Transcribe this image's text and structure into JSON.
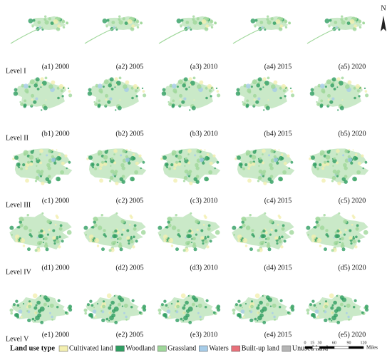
{
  "north": "N",
  "rows": [
    {
      "label": "Level I",
      "panels": [
        "(a1) 2000",
        "(a2) 2005",
        "(a3) 2010",
        "(a4) 2015",
        "(a5) 2020"
      ]
    },
    {
      "label": "Level II",
      "panels": [
        "(b1) 2000",
        "(b2) 2005",
        "(b3) 2010",
        "(b4) 2015",
        "(b5) 2020"
      ]
    },
    {
      "label": "Level III",
      "panels": [
        "(c1) 2000",
        "(c2) 2005",
        "(c3) 2010",
        "(c4) 2015",
        "(c5) 2020"
      ]
    },
    {
      "label": "Level IV",
      "panels": [
        "(d1) 2000",
        "(d2) 2005",
        "(d3) 2010",
        "(d4) 2015",
        "(d5) 2020"
      ]
    },
    {
      "label": "Level V",
      "panels": [
        "(e1) 2000",
        "(e2) 2005",
        "(e3) 2010",
        "(e4) 2015",
        "(e5) 2020"
      ]
    }
  ],
  "legend": {
    "title": "Land use type",
    "items": [
      {
        "label": "Cultivated land",
        "color": "#f3efb0"
      },
      {
        "label": "Woodland",
        "color": "#2f9e62"
      },
      {
        "label": "Grassland",
        "color": "#9fd79a"
      },
      {
        "label": "Waters",
        "color": "#a6cce8"
      },
      {
        "label": "Built-up land",
        "color": "#e8707a"
      },
      {
        "label": "Unused land",
        "color": "#b5b5b5"
      }
    ]
  },
  "scale_bar": {
    "ticks": [
      0,
      15,
      30,
      60,
      90,
      120
    ],
    "unit": "Miles"
  }
}
